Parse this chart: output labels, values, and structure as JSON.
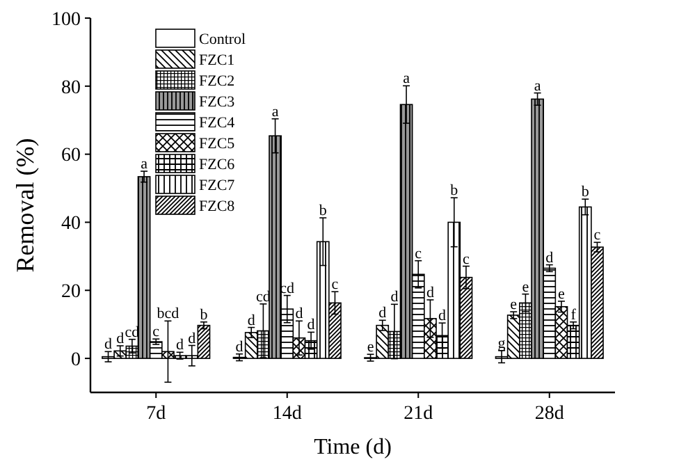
{
  "chart_data": {
    "type": "bar",
    "xlabel": "Time (d)",
    "ylabel": "Removal (%)",
    "categories": [
      "7d",
      "14d",
      "21d",
      "28d"
    ],
    "ylim": [
      -10,
      100
    ],
    "yticks": [
      0,
      20,
      40,
      60,
      80,
      100
    ],
    "legend": "top left",
    "grid": false,
    "series": [
      {
        "name": "Control",
        "color": "#ffffff",
        "values": [
          0.5,
          0.3,
          0.2,
          0.5
        ],
        "errors": [
          1.5,
          1,
          1,
          1.8
        ],
        "value_labels": [
          "d",
          "d",
          "e",
          "g"
        ]
      },
      {
        "name": "FZC1",
        "color": "#000000",
        "values": [
          2.2,
          7.6,
          9.7,
          12.7
        ],
        "errors": [
          1.5,
          1.5,
          1.5,
          1
        ],
        "value_labels": [
          "d",
          "d",
          "d",
          "e"
        ]
      },
      {
        "name": "FZC2",
        "color": "#000000",
        "values": [
          3.6,
          8.1,
          7.9,
          16.3
        ],
        "errors": [
          2,
          7.9,
          8,
          2.6
        ],
        "value_labels": [
          "cd",
          "cd",
          "d",
          "e"
        ]
      },
      {
        "name": "FZC3",
        "color": "#000000",
        "values": [
          53.4,
          65.4,
          74.6,
          76.2
        ],
        "errors": [
          1.6,
          5,
          5.5,
          1.8
        ],
        "value_labels": [
          "a",
          "a",
          "a",
          "a"
        ]
      },
      {
        "name": "FZC4",
        "color": "#000000",
        "values": [
          4.9,
          14.5,
          24.7,
          26.5
        ],
        "errors": [
          0.8,
          4,
          4,
          1
        ],
        "value_labels": [
          "c",
          "cd",
          "c",
          "d"
        ]
      },
      {
        "name": "FZC5",
        "color": "#000000",
        "values": [
          2,
          6,
          11.7,
          15.2
        ],
        "errors": [
          9,
          5,
          5.5,
          1.6
        ],
        "value_labels": [
          "bcd",
          "d",
          "d",
          "e"
        ]
      },
      {
        "name": "FZC6",
        "color": "#000000",
        "values": [
          0.8,
          5.2,
          6.7,
          9.7
        ],
        "errors": [
          1,
          2.5,
          3.7,
          1
        ],
        "value_labels": [
          "d",
          "d",
          "d",
          "f"
        ]
      },
      {
        "name": "FZC7",
        "color": "#000000",
        "values": [
          0.8,
          34.3,
          40,
          44.5
        ],
        "errors": [
          3,
          7,
          7.2,
          2.3
        ],
        "value_labels": [
          "d",
          "b",
          "b",
          "b"
        ]
      },
      {
        "name": "FZC8",
        "color": "#000000",
        "values": [
          9.7,
          16.3,
          23.8,
          32.7
        ],
        "errors": [
          1,
          3.3,
          3.3,
          1.4
        ],
        "value_labels": [
          "b",
          "c",
          "c",
          "c"
        ]
      }
    ]
  }
}
